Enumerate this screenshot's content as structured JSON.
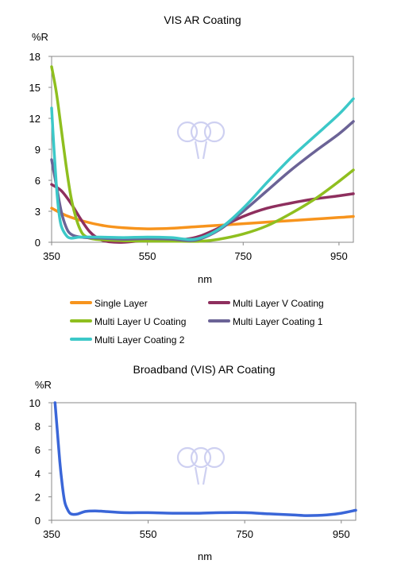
{
  "chart_data": [
    {
      "type": "line",
      "title": "VIS AR Coating",
      "ylabel": "%R",
      "xlabel": "nm",
      "xlim": [
        350,
        980
      ],
      "ylim": [
        0,
        18
      ],
      "xticks": [
        350,
        550,
        750,
        950
      ],
      "yticks": [
        0,
        3,
        6,
        9,
        12,
        15,
        18
      ],
      "grid": false,
      "legend": "bottom",
      "series": [
        {
          "name": "Single Layer",
          "color": "#f7941d",
          "points": [
            [
              350,
              3.3
            ],
            [
              380,
              2.6
            ],
            [
              420,
              2.0
            ],
            [
              460,
              1.6
            ],
            [
              500,
              1.4
            ],
            [
              550,
              1.3
            ],
            [
              600,
              1.35
            ],
            [
              650,
              1.5
            ],
            [
              700,
              1.65
            ],
            [
              750,
              1.8
            ],
            [
              800,
              1.95
            ],
            [
              850,
              2.1
            ],
            [
              900,
              2.25
            ],
            [
              950,
              2.4
            ],
            [
              980,
              2.5
            ]
          ]
        },
        {
          "name": "Multi Layer V Coating",
          "color": "#8e2f5e",
          "points": [
            [
              350,
              5.6
            ],
            [
              370,
              5.0
            ],
            [
              390,
              3.8
            ],
            [
              410,
              2.3
            ],
            [
              430,
              1.0
            ],
            [
              450,
              0.3
            ],
            [
              470,
              0.05
            ],
            [
              500,
              0.0
            ],
            [
              550,
              0.2
            ],
            [
              600,
              0.3
            ],
            [
              630,
              0.3
            ],
            [
              660,
              0.6
            ],
            [
              700,
              1.4
            ],
            [
              750,
              2.5
            ],
            [
              800,
              3.3
            ],
            [
              850,
              3.8
            ],
            [
              900,
              4.2
            ],
            [
              950,
              4.5
            ],
            [
              980,
              4.7
            ]
          ]
        },
        {
          "name": "Multi Layer U Coating",
          "color": "#8fbf1f",
          "points": [
            [
              350,
              17.0
            ],
            [
              360,
              14.5
            ],
            [
              370,
              11.0
            ],
            [
              380,
              7.5
            ],
            [
              390,
              4.5
            ],
            [
              400,
              2.5
            ],
            [
              410,
              1.2
            ],
            [
              420,
              0.6
            ],
            [
              440,
              0.3
            ],
            [
              500,
              0.15
            ],
            [
              600,
              0.1
            ],
            [
              660,
              0.1
            ],
            [
              700,
              0.3
            ],
            [
              750,
              0.8
            ],
            [
              800,
              1.6
            ],
            [
              850,
              2.8
            ],
            [
              900,
              4.2
            ],
            [
              950,
              5.9
            ],
            [
              980,
              7.0
            ]
          ]
        },
        {
          "name": "Multi Layer Coating 1",
          "color": "#6b6396",
          "points": [
            [
              350,
              8.0
            ],
            [
              360,
              5.5
            ],
            [
              370,
              3.0
            ],
            [
              380,
              1.5
            ],
            [
              390,
              0.8
            ],
            [
              410,
              0.5
            ],
            [
              450,
              0.4
            ],
            [
              500,
              0.3
            ],
            [
              550,
              0.35
            ],
            [
              600,
              0.3
            ],
            [
              650,
              0.2
            ],
            [
              700,
              1.2
            ],
            [
              750,
              3.0
            ],
            [
              800,
              5.0
            ],
            [
              850,
              7.0
            ],
            [
              900,
              8.8
            ],
            [
              950,
              10.5
            ],
            [
              980,
              11.7
            ]
          ]
        },
        {
          "name": "Multi Layer Coating 2",
          "color": "#3cc8c8",
          "points": [
            [
              350,
              13.0
            ],
            [
              355,
              9.0
            ],
            [
              360,
              5.5
            ],
            [
              365,
              3.0
            ],
            [
              370,
              1.6
            ],
            [
              380,
              0.7
            ],
            [
              390,
              0.4
            ],
            [
              410,
              0.5
            ],
            [
              450,
              0.5
            ],
            [
              500,
              0.45
            ],
            [
              550,
              0.5
            ],
            [
              600,
              0.45
            ],
            [
              650,
              0.3
            ],
            [
              700,
              1.3
            ],
            [
              750,
              3.3
            ],
            [
              800,
              5.8
            ],
            [
              850,
              8.2
            ],
            [
              900,
              10.3
            ],
            [
              950,
              12.4
            ],
            [
              980,
              13.9
            ]
          ]
        }
      ]
    },
    {
      "type": "line",
      "title": "Broadband (VIS) AR Coating",
      "ylabel": "%R",
      "xlabel": "nm",
      "xlim": [
        350,
        980
      ],
      "ylim": [
        0,
        10
      ],
      "xticks": [
        350,
        550,
        750,
        950
      ],
      "yticks": [
        0,
        2,
        4,
        6,
        8,
        10
      ],
      "grid": false,
      "legend": "none",
      "series": [
        {
          "color": "#3a66d8",
          "points": [
            [
              357,
              10.0
            ],
            [
              362,
              7.5
            ],
            [
              367,
              5.0
            ],
            [
              372,
              3.0
            ],
            [
              377,
              1.6
            ],
            [
              382,
              1.0
            ],
            [
              388,
              0.6
            ],
            [
              395,
              0.5
            ],
            [
              405,
              0.55
            ],
            [
              420,
              0.75
            ],
            [
              440,
              0.8
            ],
            [
              460,
              0.75
            ],
            [
              500,
              0.65
            ],
            [
              550,
              0.65
            ],
            [
              600,
              0.6
            ],
            [
              650,
              0.6
            ],
            [
              700,
              0.65
            ],
            [
              750,
              0.65
            ],
            [
              800,
              0.55
            ],
            [
              850,
              0.45
            ],
            [
              880,
              0.4
            ],
            [
              920,
              0.45
            ],
            [
              950,
              0.6
            ],
            [
              980,
              0.85
            ]
          ]
        }
      ]
    }
  ],
  "colors": {
    "watermark": "#c9ccf0"
  }
}
